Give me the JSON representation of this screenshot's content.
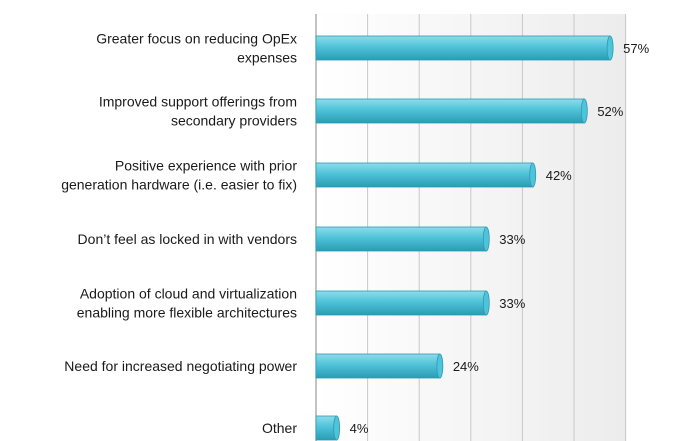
{
  "chart_data": {
    "type": "bar",
    "orientation": "horizontal",
    "categories": [
      [
        "Greater focus on reducing OpEx",
        "expenses"
      ],
      [
        "Improved support offerings from",
        "secondary providers"
      ],
      [
        "Positive experience with prior",
        "generation hardware (i.e. easier to fix)"
      ],
      [
        "Don’t feel as locked in with vendors"
      ],
      [
        "Adoption of cloud and virtualization",
        "enabling more flexible architectures"
      ],
      [
        "Need for increased negotiating power"
      ],
      [
        "Other"
      ]
    ],
    "values": [
      57,
      52,
      42,
      33,
      33,
      24,
      4
    ],
    "value_labels": [
      "57%",
      "52%",
      "42%",
      "33%",
      "33%",
      "24%",
      "4%"
    ],
    "xlim": [
      0,
      60
    ],
    "grid": true,
    "bar_color": "#4fc3d9",
    "bar_color_dark": "#2a9bb4",
    "bar_color_light": "#8fdcea",
    "grid_color": "#c8c8c8",
    "plot_bg": "#f4f4f4"
  }
}
